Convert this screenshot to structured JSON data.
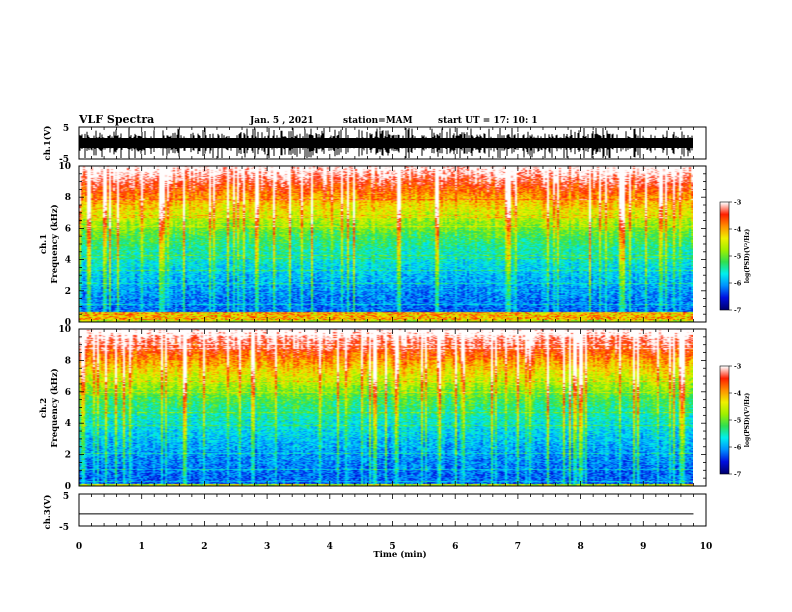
{
  "header": {
    "title": "VLF Spectra",
    "date": "Jan. 5 , 2021",
    "station": "station=MAM",
    "start": "start UT =  17: 10: 1"
  },
  "panels": {
    "ch1_label": "ch.1(V)",
    "ch3_label": "ch.3(V)",
    "spec1_label_a": "ch.1",
    "spec1_label_b": "Frequency (kHz)",
    "spec2_label_a": "ch.2",
    "spec2_label_b": "Frequency (kHz)",
    "colorbar_label": "log(PSD)(V²/Hz)"
  },
  "colors": {
    "scale": [
      "#000070",
      "#0010e0",
      "#0090ff",
      "#00f0f0",
      "#30e050",
      "#a0f000",
      "#f0f000",
      "#ff9000",
      "#ff2000",
      "#ffffff"
    ]
  },
  "chart_data": [
    {
      "type": "line",
      "name": "ch1",
      "ylabel": "ch.1(V)",
      "ylim": [
        -5,
        5
      ],
      "yticks": [
        "5",
        "-5"
      ],
      "xlim": [
        0,
        10
      ]
    },
    {
      "type": "heatmap",
      "name": "ch1-spectrogram",
      "ylabel": "Frequency (kHz)",
      "ylim": [
        0,
        10
      ],
      "yticks": [
        "0",
        "2",
        "4",
        "6",
        "8",
        "10"
      ],
      "xlim": [
        0,
        9.8
      ],
      "colorbar": {
        "label": "log(PSD)(V²/Hz)",
        "range": [
          -7,
          -3
        ],
        "ticks": [
          "-3",
          "-4",
          "-5",
          "-6",
          "-7"
        ]
      }
    },
    {
      "type": "heatmap",
      "name": "ch2-spectrogram",
      "ylabel": "Frequency (kHz)",
      "ylim": [
        0,
        10
      ],
      "yticks": [
        "0",
        "2",
        "4",
        "6",
        "8",
        "10"
      ],
      "xlim": [
        0,
        9.8
      ],
      "colorbar": {
        "label": "log(PSD)(V²/Hz)",
        "range": [
          -7,
          -3
        ],
        "ticks": [
          "-3",
          "-4",
          "-5",
          "-6",
          "-7"
        ]
      }
    },
    {
      "type": "line",
      "name": "ch3",
      "ylabel": "ch.3(V)",
      "ylim": [
        -5,
        5
      ],
      "yticks": [
        "5",
        "-5"
      ],
      "xlim": [
        0,
        10
      ],
      "values": [
        [
          0,
          -1.2
        ],
        [
          9.8,
          -1.2
        ]
      ],
      "xlabel": "Time (min)",
      "xticks": [
        "0",
        "1",
        "2",
        "3",
        "4",
        "5",
        "6",
        "7",
        "8",
        "9",
        "10"
      ]
    }
  ]
}
